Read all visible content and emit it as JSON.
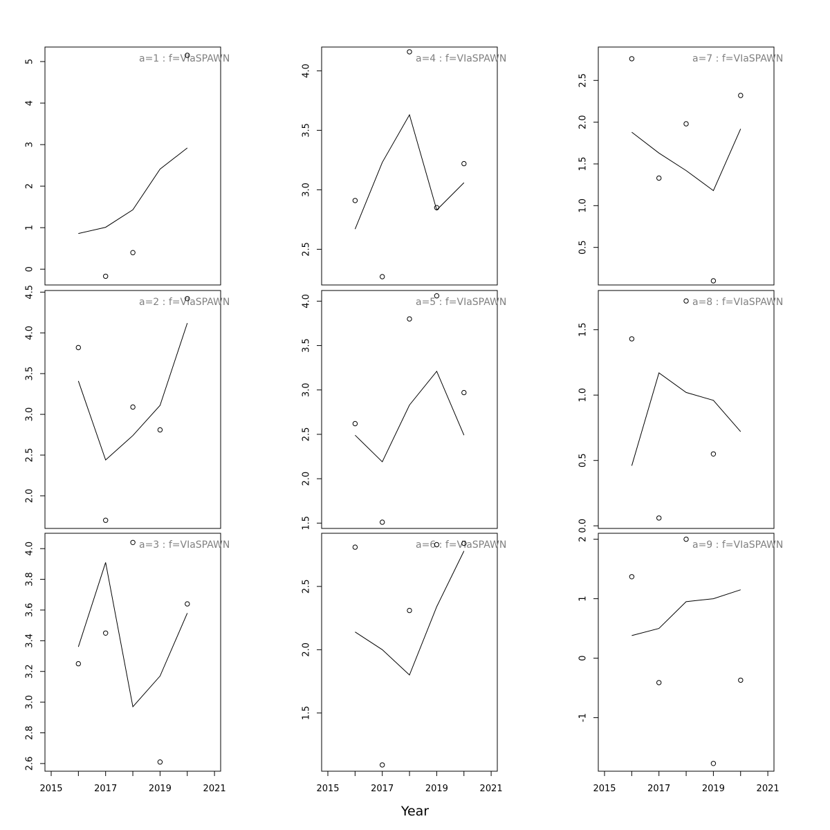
{
  "chart_data": {
    "type": "line",
    "layout": "3x3 grid of small multiples, filled column by column",
    "xlabel": "Year",
    "xlim": [
      2015,
      2021
    ],
    "x_ticks": [
      2015,
      2017,
      2019,
      2021
    ],
    "x": [
      2016,
      2017,
      2018,
      2019,
      2020
    ],
    "grid": false,
    "legend": "none",
    "colors": {
      "line": "#000000",
      "points": "#000000",
      "title": "#808080",
      "frame": "#000000"
    },
    "panels": [
      {
        "title": "a=1 : f=VIaSPAWN",
        "ylim": [
          -0.38,
          5.35
        ],
        "yticks": [
          0,
          1,
          2,
          3,
          4,
          5
        ],
        "fitted": [
          0.86,
          1.01,
          1.43,
          2.41,
          2.92
        ],
        "observed": [
          null,
          -0.17,
          0.4,
          null,
          5.15
        ]
      },
      {
        "title": "a=2 : f=VIaSPAWN",
        "ylim": [
          1.6,
          4.52
        ],
        "yticks": [
          2.0,
          2.5,
          3.0,
          3.5,
          4.0,
          4.5
        ],
        "fitted": [
          3.41,
          2.44,
          2.74,
          3.11,
          4.12
        ],
        "observed": [
          3.82,
          1.7,
          3.09,
          2.81,
          4.42
        ]
      },
      {
        "title": "a=3 : f=VIaSPAWN",
        "ylim": [
          2.55,
          4.1
        ],
        "yticks": [
          2.6,
          2.8,
          3.0,
          3.2,
          3.4,
          3.6,
          3.8,
          4.0
        ],
        "fitted": [
          3.36,
          3.91,
          2.97,
          3.17,
          3.58
        ],
        "observed": [
          3.25,
          3.45,
          4.04,
          2.61,
          3.64
        ]
      },
      {
        "title": "a=4 : f=VIaSPAWN",
        "ylim": [
          2.2,
          4.2
        ],
        "yticks": [
          2.5,
          3.0,
          3.5,
          4.0
        ],
        "fitted": [
          2.67,
          3.23,
          3.63,
          2.83,
          3.06
        ],
        "observed": [
          2.91,
          2.27,
          4.16,
          2.85,
          3.22
        ]
      },
      {
        "title": "a=5 : f=VIaSPAWN",
        "ylim": [
          1.44,
          4.12
        ],
        "yticks": [
          1.5,
          2.0,
          2.5,
          3.0,
          3.5,
          4.0
        ],
        "fitted": [
          2.49,
          2.19,
          2.83,
          3.21,
          2.49
        ],
        "observed": [
          2.62,
          1.51,
          3.8,
          4.06,
          2.97
        ]
      },
      {
        "title": "a=6 : f=VIaSPAWN",
        "ylim": [
          1.04,
          2.92
        ],
        "yticks": [
          1.5,
          2.0,
          2.5
        ],
        "fitted": [
          2.14,
          2.0,
          1.8,
          2.34,
          2.78
        ],
        "observed": [
          2.81,
          1.09,
          2.31,
          2.83,
          2.84
        ]
      },
      {
        "title": "a=7 : f=VIaSPAWN",
        "ylim": [
          0.05,
          2.9
        ],
        "yticks": [
          0.5,
          1.0,
          1.5,
          2.0,
          2.5
        ],
        "fitted": [
          1.88,
          1.63,
          1.42,
          1.18,
          1.92
        ],
        "observed": [
          2.76,
          1.33,
          1.98,
          0.1,
          2.32
        ]
      },
      {
        "title": "a=8 : f=VIaSPAWN",
        "ylim": [
          -0.02,
          1.8
        ],
        "yticks": [
          0.0,
          0.5,
          1.0,
          1.5
        ],
        "fitted": [
          0.46,
          1.17,
          1.02,
          0.96,
          0.72
        ],
        "observed": [
          1.43,
          0.06,
          1.72,
          0.55,
          null
        ]
      },
      {
        "title": "a=9 : f=VIaSPAWN",
        "ylim": [
          -1.9,
          2.1
        ],
        "yticks": [
          -1,
          0,
          1,
          2
        ],
        "fitted": [
          0.38,
          0.5,
          0.95,
          1.0,
          1.15
        ],
        "observed": [
          1.37,
          -0.41,
          2.0,
          -1.77,
          -0.37
        ]
      }
    ]
  }
}
